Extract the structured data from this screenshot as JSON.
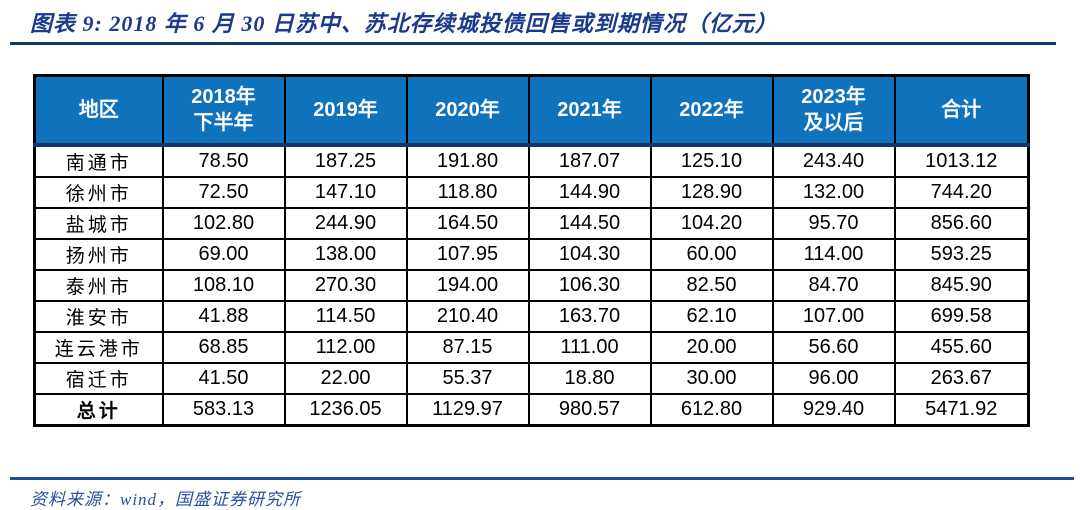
{
  "figure": {
    "title": "图表 9:  2018 年 6 月 30 日苏中、苏北存续城投债回售或到期情况（亿元）",
    "source": "资料来源：wind，国盛证券研究所"
  },
  "colors": {
    "header_bg": "#0E72BD",
    "header_text": "#FFFFFF",
    "title_text": "#1B3A8C",
    "top_rule": "#17366E",
    "bottom_rule": "#1E5094",
    "header_separator": "#14355F",
    "table_border": "#000000",
    "source_text": "#2A50A0"
  },
  "chart_data": {
    "type": "table",
    "title": "2018年6月30日苏中、苏北存续城投债回售或到期情况",
    "unit": "亿元",
    "columns": [
      "地区",
      "2018年\n下半年",
      "2019年",
      "2020年",
      "2021年",
      "2022年",
      "2023年\n及以后",
      "合计"
    ],
    "rows": [
      [
        "南通市",
        "78.50",
        "187.25",
        "191.80",
        "187.07",
        "125.10",
        "243.40",
        "1013.12"
      ],
      [
        "徐州市",
        "72.50",
        "147.10",
        "118.80",
        "144.90",
        "128.90",
        "132.00",
        "744.20"
      ],
      [
        "盐城市",
        "102.80",
        "244.90",
        "164.50",
        "144.50",
        "104.20",
        "95.70",
        "856.60"
      ],
      [
        "扬州市",
        "69.00",
        "138.00",
        "107.95",
        "104.30",
        "60.00",
        "114.00",
        "593.25"
      ],
      [
        "泰州市",
        "108.10",
        "270.30",
        "194.00",
        "106.30",
        "82.50",
        "84.70",
        "845.90"
      ],
      [
        "淮安市",
        "41.88",
        "114.50",
        "210.40",
        "163.70",
        "62.10",
        "107.00",
        "699.58"
      ],
      [
        "连云港市",
        "68.85",
        "112.00",
        "87.15",
        "111.00",
        "20.00",
        "56.60",
        "455.60"
      ],
      [
        "宿迁市",
        "41.50",
        "22.00",
        "55.37",
        "18.80",
        "30.00",
        "96.00",
        "263.67"
      ],
      [
        "总计",
        "583.13",
        "1236.05",
        "1129.97",
        "980.57",
        "612.80",
        "929.40",
        "5471.92"
      ]
    ]
  }
}
